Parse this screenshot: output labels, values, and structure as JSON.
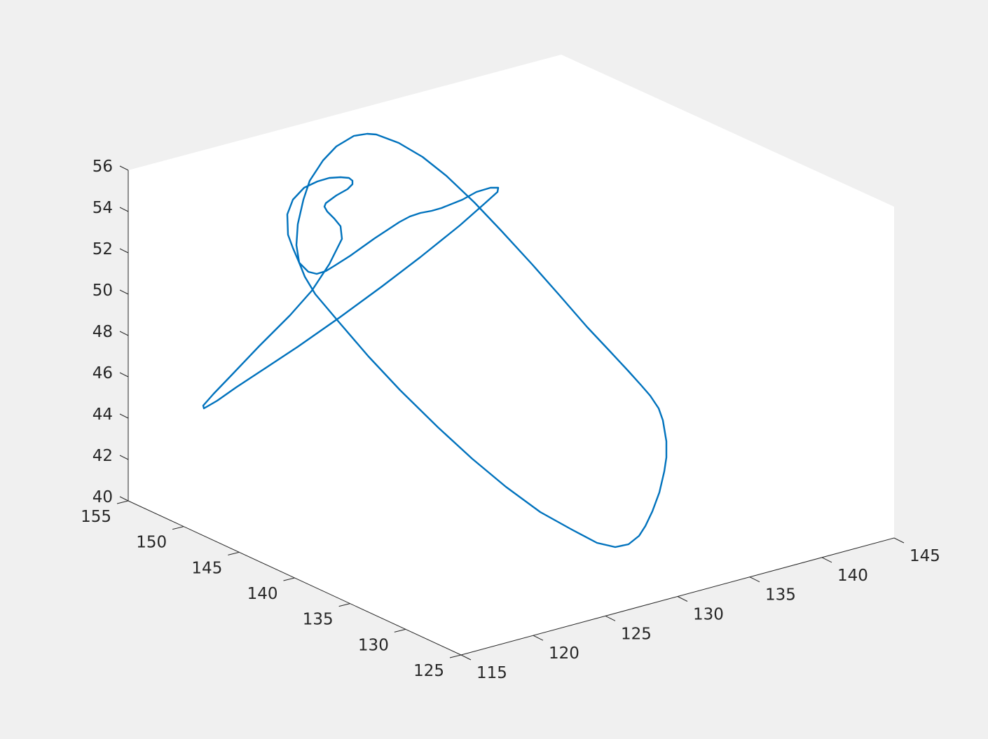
{
  "chart_data": {
    "type": "line",
    "view": "3d",
    "grid": false,
    "x_ticks": [
      115,
      120,
      125,
      130,
      135,
      140,
      145
    ],
    "y_ticks": [
      125,
      130,
      135,
      140,
      145,
      150,
      155
    ],
    "z_ticks": [
      40,
      42,
      44,
      46,
      48,
      50,
      52,
      54,
      56
    ],
    "x_tick_labels": [
      "115",
      "120",
      "125",
      "130",
      "135",
      "140",
      "145"
    ],
    "y_tick_labels": [
      "125",
      "130",
      "135",
      "140",
      "145",
      "150",
      "155"
    ],
    "z_tick_labels": [
      "40",
      "42",
      "44",
      "46",
      "48",
      "50",
      "52",
      "54",
      "56"
    ],
    "xlim": [
      115,
      145
    ],
    "ylim": [
      125,
      155
    ],
    "zlim": [
      40,
      56
    ],
    "line_color": "#0072bd",
    "series": [
      {
        "points_projected": [
          [
            503,
            258
          ],
          [
            498,
            254
          ],
          [
            486,
            253
          ],
          [
            470,
            254
          ],
          [
            453,
            259
          ],
          [
            434,
            268
          ],
          [
            418,
            285
          ],
          [
            410,
            306
          ],
          [
            411,
            335
          ],
          [
            418,
            354
          ],
          [
            427,
            375
          ],
          [
            440,
            388
          ],
          [
            452,
            391
          ],
          [
            465,
            387
          ],
          [
            478,
            379
          ],
          [
            500,
            365
          ],
          [
            535,
            340
          ],
          [
            570,
            317
          ],
          [
            585,
            309
          ],
          [
            600,
            304
          ],
          [
            616,
            301
          ],
          [
            630,
            297
          ],
          [
            660,
            285
          ],
          [
            680,
            274
          ],
          [
            700,
            268
          ],
          [
            711,
            268
          ],
          [
            710,
            274
          ],
          [
            690,
            292
          ],
          [
            656,
            322
          ],
          [
            600,
            367
          ],
          [
            545,
            409
          ],
          [
            485,
            453
          ],
          [
            425,
            495
          ],
          [
            375,
            528
          ],
          [
            337,
            553
          ],
          [
            310,
            572
          ],
          [
            298,
            579
          ],
          [
            291,
            583
          ],
          [
            290,
            579
          ],
          [
            305,
            562
          ],
          [
            330,
            536
          ],
          [
            370,
            494
          ],
          [
            414,
            450
          ],
          [
            445,
            415
          ],
          [
            470,
            377
          ],
          [
            488,
            341
          ],
          [
            486,
            323
          ],
          [
            477,
            312
          ],
          [
            467,
            302
          ],
          [
            463,
            295
          ],
          [
            465,
            290
          ],
          [
            480,
            279
          ],
          [
            496,
            270
          ],
          [
            503,
            263
          ],
          [
            503,
            258
          ]
        ]
      },
      {
        "points_projected": [
          [
            427,
            375
          ],
          [
            423,
            350
          ],
          [
            425,
            320
          ],
          [
            433,
            285
          ],
          [
            442,
            258
          ],
          [
            461,
            229
          ],
          [
            480,
            209
          ],
          [
            505,
            194
          ],
          [
            524,
            191
          ],
          [
            537,
            192
          ],
          [
            569,
            204
          ],
          [
            603,
            224
          ],
          [
            637,
            251
          ],
          [
            677,
            289
          ],
          [
            715,
            329
          ],
          [
            760,
            378
          ],
          [
            798,
            421
          ],
          [
            838,
            467
          ],
          [
            870,
            501
          ],
          [
            897,
            530
          ],
          [
            915,
            550
          ],
          [
            928,
            565
          ],
          [
            940,
            583
          ],
          [
            946,
            600
          ],
          [
            951,
            630
          ],
          [
            951,
            653
          ],
          [
            948,
            673
          ],
          [
            941,
            703
          ],
          [
            931,
            730
          ],
          [
            921,
            751
          ],
          [
            912,
            765
          ],
          [
            897,
            777
          ],
          [
            878,
            781
          ],
          [
            852,
            775
          ],
          [
            816,
            756
          ],
          [
            771,
            731
          ],
          [
            722,
            695
          ],
          [
            674,
            655
          ],
          [
            625,
            610
          ],
          [
            571,
            557
          ],
          [
            526,
            509
          ],
          [
            483,
            459
          ],
          [
            450,
            420
          ],
          [
            435,
            395
          ],
          [
            427,
            375
          ]
        ]
      }
    ]
  }
}
